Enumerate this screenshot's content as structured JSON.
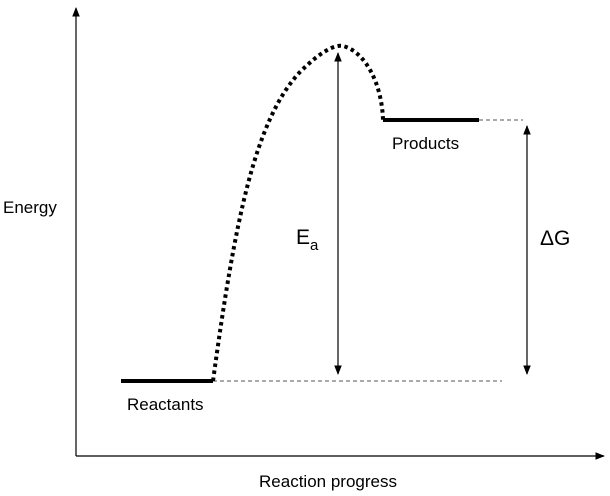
{
  "axes": {
    "y_label": "Energy",
    "x_label": "Reaction progress"
  },
  "levels": {
    "reactants_label": "Reactants",
    "products_label": "Products"
  },
  "annotations": {
    "activation_energy_main": "E",
    "activation_energy_sub": "a",
    "free_energy_change": "ΔG"
  }
}
